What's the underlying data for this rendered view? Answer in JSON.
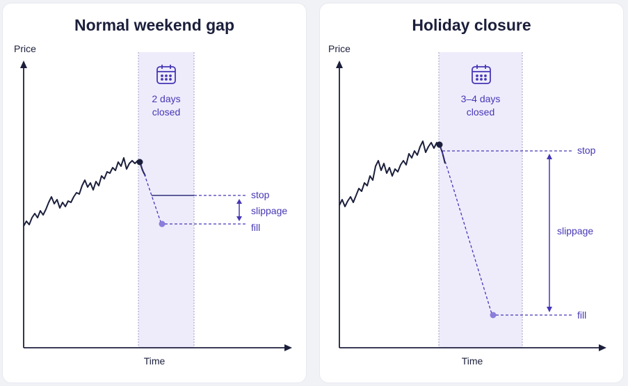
{
  "panels": [
    {
      "title": "Normal weekend gap",
      "y_label": "Price",
      "x_label": "Time",
      "closed_line1": "2 days",
      "closed_line2": "closed",
      "stop_label": "stop",
      "slippage_label": "slippage",
      "fill_label": "fill"
    },
    {
      "title": "Holiday closure",
      "y_label": "Price",
      "x_label": "Time",
      "closed_line1": "3–4 days",
      "closed_line2": "closed",
      "stop_label": "stop",
      "slippage_label": "slippage",
      "fill_label": "fill"
    }
  ],
  "colors": {
    "price_line": "#1b1f3b",
    "accent": "#4536b5",
    "closed_zone": "#eeecfb",
    "fill_dot": "#8b7ddb"
  },
  "icons": [
    "calendar-icon"
  ]
}
